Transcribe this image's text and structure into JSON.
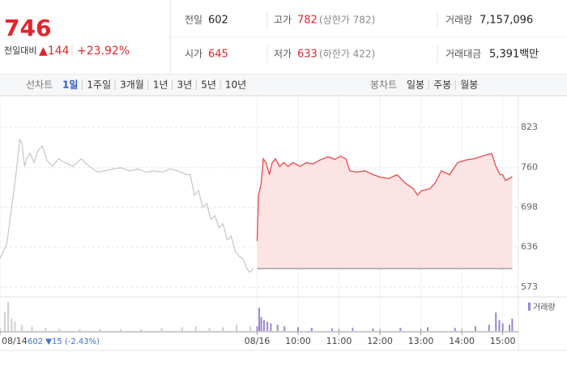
{
  "quote": {
    "price": "746",
    "change_label": "전일대비",
    "change": "▲144",
    "change_rate": "+23.92%"
  },
  "stats": [
    {
      "label": "전일",
      "value": "602"
    },
    {
      "label": "고가",
      "value": "782",
      "note": "(상한가 782)"
    },
    {
      "label": "거래량",
      "value": "7,157,096"
    },
    {
      "label": "시가",
      "value": "645"
    },
    {
      "label": "저가",
      "value": "633",
      "note": "(하한가 422)"
    },
    {
      "label": "거래대금",
      "value": "5,391백만"
    }
  ],
  "tabs": {
    "line_label": "선차트",
    "line": [
      "1일",
      "1주일",
      "3개월",
      "1년",
      "3년",
      "5년",
      "10년"
    ],
    "active": 0,
    "candle_label": "봉차트",
    "candle": [
      "일봉",
      "주봉",
      "월봉"
    ]
  },
  "prev_close_note": "602 ▼15 (-2.43%)",
  "chart_data": [
    {
      "type": "line",
      "xlim": [
        13,
        773
      ],
      "ylim": [
        559,
        860
      ],
      "yticks": [
        573,
        636,
        698,
        760,
        823
      ],
      "xticks": [
        {
          "value": 13,
          "label": "08/14"
        },
        {
          "value": 390,
          "label": "08/16"
        },
        {
          "value": 450,
          "label": "10:00"
        },
        {
          "value": 510,
          "label": "11:00"
        },
        {
          "value": 570,
          "label": "12:00"
        },
        {
          "value": 630,
          "label": "13:00"
        },
        {
          "value": 690,
          "label": "14:00"
        },
        {
          "value": 750,
          "label": "15:00"
        }
      ],
      "grid": true,
      "baseline": 602,
      "series": [
        {
          "color": "#c9c9c9",
          "x": [
            13,
            23,
            31,
            37,
            42,
            45,
            49,
            52,
            57,
            63,
            69,
            75,
            82,
            90,
            99,
            108,
            120,
            132,
            144,
            156,
            167,
            179,
            191,
            203,
            215,
            227,
            239,
            251,
            262,
            274,
            286,
            292,
            298,
            304,
            310,
            316,
            322,
            328,
            334,
            340,
            346,
            352,
            358,
            364,
            369,
            375,
            379,
            384
          ],
          "values": [
            618,
            641,
            704,
            755,
            804,
            800,
            762,
            774,
            783,
            768,
            787,
            794,
            771,
            762,
            774,
            768,
            762,
            774,
            762,
            753,
            755,
            758,
            760,
            755,
            758,
            753,
            755,
            753,
            758,
            755,
            749,
            749,
            717,
            724,
            698,
            704,
            679,
            685,
            666,
            672,
            647,
            653,
            628,
            621,
            618,
            602,
            596,
            602
          ]
        },
        {
          "color": "#e8474c",
          "fill": "#fde4e4",
          "x": [
            390,
            392,
            396,
            399,
            403,
            408,
            412,
            417,
            423,
            429,
            435,
            443,
            453,
            462,
            472,
            482,
            494,
            504,
            512,
            520,
            526,
            536,
            548,
            560,
            571,
            583,
            595,
            607,
            619,
            625,
            631,
            643,
            651,
            660,
            672,
            684,
            696,
            708,
            720,
            729,
            734,
            740,
            746,
            750,
            754,
            759,
            764
          ],
          "values": [
            645,
            717,
            736,
            774,
            768,
            749,
            768,
            774,
            762,
            768,
            762,
            768,
            762,
            768,
            766,
            772,
            777,
            773,
            778,
            774,
            755,
            753,
            755,
            749,
            745,
            743,
            749,
            736,
            727,
            717,
            724,
            727,
            736,
            755,
            749,
            768,
            772,
            774,
            778,
            781,
            782,
            762,
            749,
            749,
            740,
            743,
            746
          ]
        }
      ]
    },
    {
      "type": "bar",
      "xlim": [
        13,
        773
      ],
      "ylim": [
        0,
        100
      ],
      "legend": "top-right",
      "series": [
        {
          "color": "#cfcfcf",
          "x": [
            13,
            20,
            25,
            30,
            35,
            45,
            60,
            80,
            100,
            130,
            160,
            190,
            220,
            250,
            280,
            300,
            320,
            340,
            360,
            380
          ],
          "values": [
            10,
            60,
            95,
            40,
            30,
            20,
            15,
            10,
            8,
            6,
            6,
            5,
            6,
            10,
            12,
            15,
            10,
            12,
            20,
            15
          ]
        },
        {
          "name": "거래량",
          "color": "#9a86cc",
          "x": [
            390,
            393,
            396,
            400,
            405,
            410,
            420,
            430,
            450,
            470,
            500,
            530,
            560,
            600,
            640,
            680,
            710,
            730,
            740,
            745,
            750,
            760,
            764
          ],
          "values": [
            15,
            75,
            45,
            35,
            30,
            25,
            20,
            15,
            12,
            10,
            8,
            10,
            8,
            10,
            12,
            10,
            15,
            20,
            60,
            35,
            25,
            20,
            40
          ]
        }
      ]
    }
  ]
}
